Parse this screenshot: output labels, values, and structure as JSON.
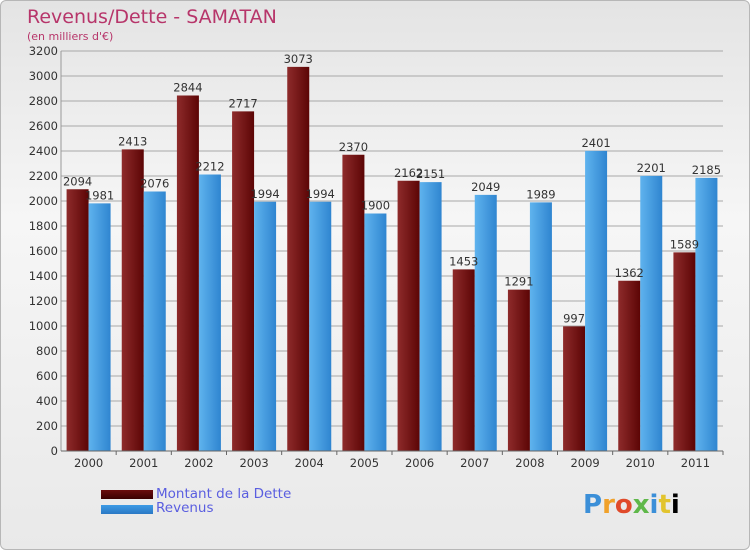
{
  "header": {
    "title": "Revenus/Dette - SAMATAN",
    "subtitle": "(en milliers d'€)"
  },
  "legend": [
    {
      "label": "Montant de la Dette",
      "color": "#6b0d0d"
    },
    {
      "label": "Revenus",
      "color": "#3d9be6"
    }
  ],
  "logo": {
    "text": "Proxiti"
  },
  "colors": {
    "debt_light": "#8e2b2b",
    "debt_dark": "#5c0505",
    "rev_light": "#5fb3ee",
    "rev_dark": "#2f85d0",
    "grid": "#a8a8a8",
    "label": "#333333"
  },
  "chart_data": {
    "type": "bar",
    "categories": [
      "2000",
      "2001",
      "2002",
      "2003",
      "2004",
      "2005",
      "2006",
      "2007",
      "2008",
      "2009",
      "2010",
      "2011"
    ],
    "series": [
      {
        "name": "Montant de la Dette",
        "values": [
          2094,
          2413,
          2844,
          2717,
          3073,
          2370,
          2162,
          1453,
          1291,
          997,
          1362,
          1589
        ]
      },
      {
        "name": "Revenus",
        "values": [
          1981,
          2076,
          2212,
          1994,
          1994,
          1900,
          2151,
          2049,
          1989,
          2401,
          2201,
          2185
        ]
      }
    ],
    "value_labels": [
      [
        "2094",
        "2413",
        "2844",
        "2717",
        "3073",
        "2370",
        "2162",
        "1453",
        "1291",
        "997",
        "1362",
        "1589"
      ],
      [
        "1981",
        "2076",
        "2212",
        "1994",
        "1994",
        "1900",
        "2151",
        "2049",
        "1989",
        "2401",
        "2201",
        "2185"
      ]
    ],
    "ylim": [
      0,
      3200
    ],
    "yticks": [
      0,
      200,
      400,
      600,
      800,
      1000,
      1200,
      1400,
      1600,
      1800,
      2000,
      2200,
      2400,
      2600,
      2800,
      3000,
      3200
    ],
    "xlabel": "",
    "ylabel": "",
    "grid": true,
    "legend_position": "bottom-left"
  }
}
